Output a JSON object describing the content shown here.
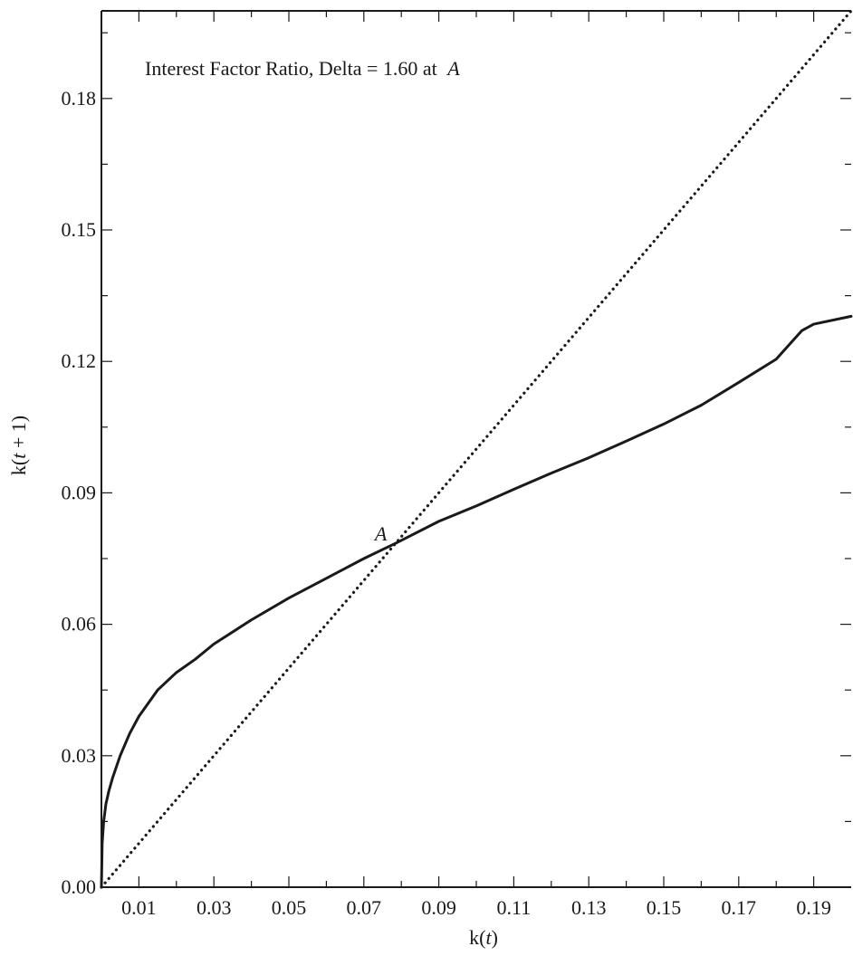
{
  "chart_data": {
    "type": "line",
    "title": "",
    "annotation_text": "Interest Factor Ratio, Delta = 1.60 at",
    "annotation_point_label": "A",
    "point_label": "A",
    "xlabel_prefix": "k(",
    "xlabel_var": "t",
    "xlabel_suffix": ")",
    "ylabel_prefix": "k(",
    "ylabel_var": "t",
    "ylabel_suffix": " + 1)",
    "xlim": [
      0.0,
      0.2
    ],
    "ylim": [
      0.0,
      0.2
    ],
    "x_ticks": [
      0.01,
      0.03,
      0.05,
      0.07,
      0.09,
      0.11,
      0.13,
      0.15,
      0.17,
      0.19
    ],
    "x_tick_labels": [
      "0.01",
      "0.03",
      "0.05",
      "0.07",
      "0.09",
      "0.11",
      "0.13",
      "0.15",
      "0.17",
      "0.19"
    ],
    "y_ticks": [
      0.0,
      0.03,
      0.06,
      0.09,
      0.12,
      0.15,
      0.18
    ],
    "y_tick_labels": [
      "0.00",
      "0.03",
      "0.06",
      "0.09",
      "0.12",
      "0.15",
      "0.18"
    ],
    "grid": false,
    "legend": "none",
    "series": [
      {
        "style": "solid",
        "color": "#1a1a1a",
        "points": [
          [
            0.0,
            0.0
          ],
          [
            0.0002,
            0.01
          ],
          [
            0.0006,
            0.015
          ],
          [
            0.0012,
            0.019
          ],
          [
            0.002,
            0.022
          ],
          [
            0.003,
            0.025
          ],
          [
            0.005,
            0.03
          ],
          [
            0.0075,
            0.035
          ],
          [
            0.01,
            0.039
          ],
          [
            0.015,
            0.045
          ],
          [
            0.02,
            0.049
          ],
          [
            0.025,
            0.052
          ],
          [
            0.03,
            0.0555
          ],
          [
            0.04,
            0.061
          ],
          [
            0.05,
            0.066
          ],
          [
            0.06,
            0.0705
          ],
          [
            0.07,
            0.075
          ],
          [
            0.0785,
            0.0785
          ],
          [
            0.09,
            0.0835
          ],
          [
            0.1,
            0.087
          ],
          [
            0.11,
            0.0908
          ],
          [
            0.12,
            0.0945
          ],
          [
            0.13,
            0.098
          ],
          [
            0.14,
            0.1018
          ],
          [
            0.15,
            0.1057
          ],
          [
            0.16,
            0.11
          ],
          [
            0.17,
            0.1152
          ],
          [
            0.18,
            0.1205
          ],
          [
            0.1868,
            0.127
          ],
          [
            0.19,
            0.1285
          ],
          [
            0.2,
            0.1303
          ]
        ]
      },
      {
        "style": "dotted",
        "color": "#1a1a1a",
        "points": [
          [
            0.0,
            0.0
          ],
          [
            0.2,
            0.2
          ]
        ]
      }
    ],
    "points": [
      {
        "label": "A",
        "x": 0.0775,
        "y": 0.0775
      }
    ]
  }
}
